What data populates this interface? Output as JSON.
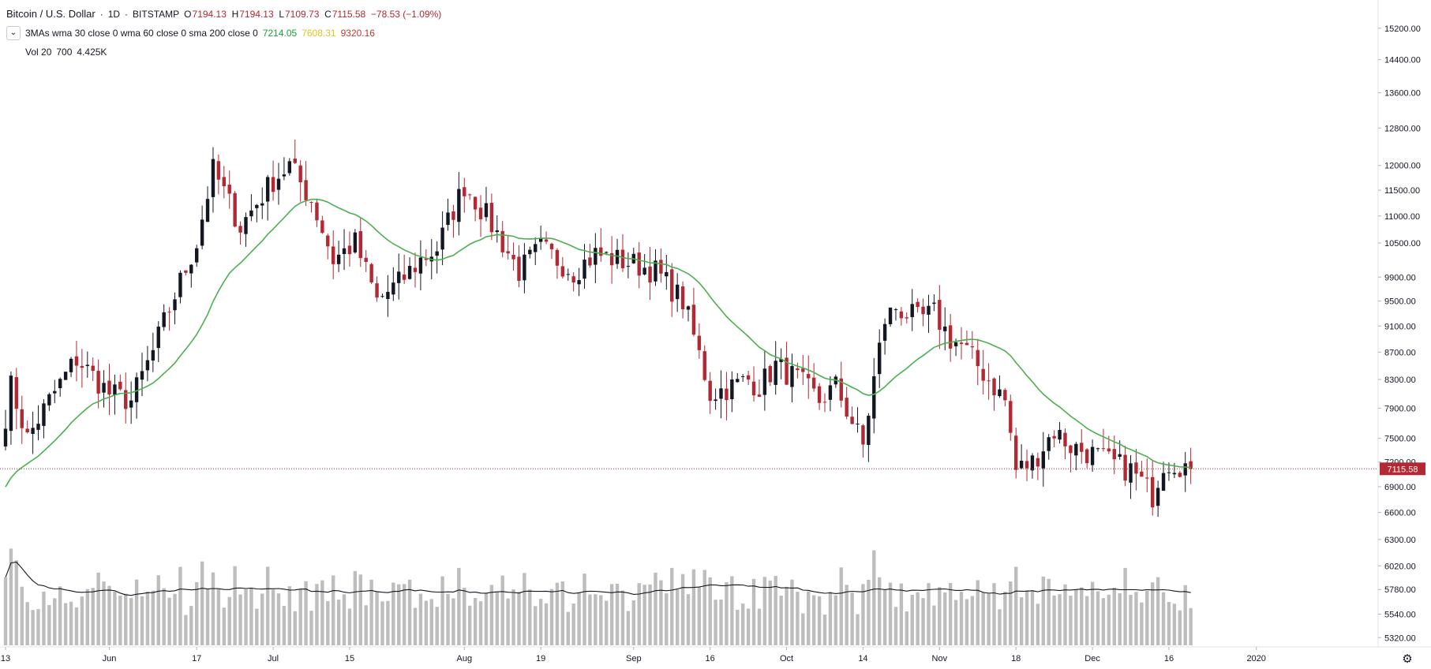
{
  "header": {
    "symbol": "Bitcoin / U.S. Dollar",
    "interval": "1D",
    "exchange": "BITSTAMP",
    "open": "7194.13",
    "high": "7194.13",
    "low": "7109.73",
    "close": "7115.58",
    "change": "−78.53 (−1.09%)"
  },
  "ma_indicator": {
    "label": "3MAs wma 30 close 0 wma 60 close 0 sma 200 close 0",
    "v1": "7214.05",
    "v2": "7608.31",
    "v3": "9320.16",
    "colors": [
      "#1e9c3a",
      "#e3c21f",
      "#c0392b"
    ]
  },
  "vol_indicator": {
    "label": "Vol 20",
    "param": "700",
    "value": "4.425K"
  },
  "colors": {
    "up": "#131722",
    "down": "#b22833",
    "ma_line": "#4caf50",
    "volume": "#bdbdbd",
    "vol_ma": "#131722",
    "price_line": "#b22833"
  },
  "chart_data": {
    "type": "candlestick",
    "price_axis": {
      "ticks": [
        15200,
        14400,
        13600,
        12800,
        12000,
        11500,
        11000,
        10500,
        9900,
        9500,
        9100,
        8700,
        8300,
        7900,
        7500,
        7200,
        6900,
        6600,
        6300,
        6020,
        5780,
        5540,
        5320
      ],
      "tick_labels": [
        "15200.00",
        "14400.00",
        "13600.00",
        "12800.00",
        "12000.00",
        "11500.00",
        "11000.00",
        "10500.00",
        "9900.00",
        "9500.00",
        "9100.00",
        "8700.00",
        "8300.00",
        "7900.00",
        "7500.00",
        "7200.00",
        "6900.00",
        "6600.00",
        "6300.00",
        "6020.00",
        "5780.00",
        "5540.00",
        "5320.00"
      ],
      "ylim": [
        5250,
        15700
      ],
      "scale": "log"
    },
    "last_price": 7115.58,
    "last_price_label": "7115.58",
    "time_axis": {
      "labels": [
        "13",
        "Jun",
        "17",
        "Jul",
        "15",
        "Aug",
        "19",
        "Sep",
        "16",
        "Oct",
        "14",
        "Nov",
        "18",
        "Dec",
        "16",
        "2020"
      ],
      "label_days": [
        0,
        19,
        35,
        49,
        63,
        84,
        98,
        115,
        129,
        143,
        157,
        171,
        185,
        199,
        213,
        229
      ]
    },
    "start_date": "2019-05-13",
    "anchors": {
      "days": [
        0,
        1,
        4,
        8,
        13,
        19,
        23,
        27,
        35,
        38,
        43,
        49,
        52,
        56,
        60,
        64,
        68,
        72,
        76,
        79,
        84,
        88,
        94,
        98,
        104,
        108,
        112,
        116,
        119,
        124,
        129,
        133,
        136,
        138,
        141,
        145,
        149,
        152,
        157,
        161,
        163,
        165,
        167,
        170,
        173,
        175,
        179,
        183,
        185,
        188,
        190,
        192,
        195,
        199,
        202,
        206,
        210,
        212,
        214,
        216,
        217
      ],
      "closes": [
        7800,
        8200,
        7500,
        8000,
        8600,
        8100,
        8000,
        8700,
        10500,
        11900,
        10800,
        11700,
        12000,
        11300,
        10200,
        10500,
        9500,
        9800,
        10200,
        10400,
        11600,
        11000,
        10000,
        10400,
        10000,
        10300,
        10200,
        10100,
        10000,
        9500,
        8100,
        8200,
        8300,
        8200,
        8500,
        8300,
        8000,
        8200,
        7400,
        9200,
        9400,
        9300,
        9200,
        9300,
        8900,
        8800,
        8400,
        8000,
        7100,
        7200,
        7400,
        7600,
        7400,
        7300,
        7200,
        7100,
        6800,
        7200,
        7200,
        7150,
        7115.58
      ]
    },
    "volume_axis": {
      "max": 10
    }
  },
  "settings_icon": "gear-icon"
}
